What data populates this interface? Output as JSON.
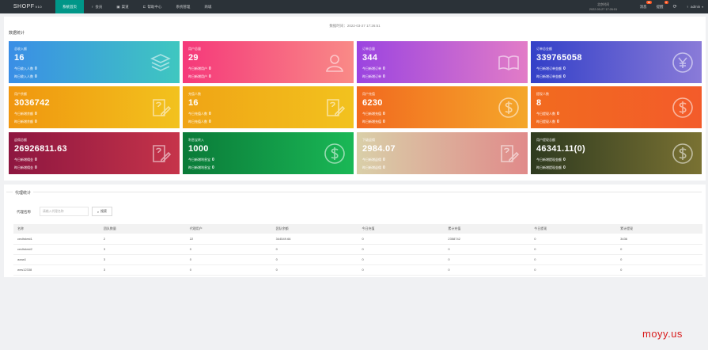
{
  "app": {
    "logo": "SHOPF",
    "version": "V10"
  },
  "nav": [
    {
      "icon": "",
      "label": "系统首页",
      "active": true
    },
    {
      "icon": "♀",
      "label": "会员"
    },
    {
      "icon": "▣",
      "label": "渠道"
    },
    {
      "icon": "⊏",
      "label": "帮助中心"
    },
    {
      "icon": "",
      "label": "系统管理"
    },
    {
      "icon": "",
      "label": "商城"
    }
  ],
  "topright": {
    "clock_line1": "北京时间",
    "clock_line2": "2022-03-27 17:26:51",
    "msg_label": "消息",
    "msg_badge": "99",
    "notice_label": "提醒",
    "notice_badge": "0",
    "refresh_icon": "refresh-icon",
    "user_label": "admin"
  },
  "stats": {
    "title": "数据统计",
    "update_time": "数据时间：2022-03-27 17:26:51",
    "cards": [
      {
        "title": "总收入额",
        "value": "16",
        "l1": "今日收入人数",
        "v1": "0",
        "l2": "昨日收入人数",
        "v2": "0",
        "icon": "layers-icon",
        "bg": "linear-gradient(90deg,#3a8ee6,#3fc7c0)"
      },
      {
        "title": "用户总量",
        "value": "29",
        "l1": "今日新增用户",
        "v1": "0",
        "l2": "昨日新增用户",
        "v2": "0",
        "icon": "user-icon",
        "bg": "linear-gradient(90deg,#f5387a,#f98a87)"
      },
      {
        "title": "订单总量",
        "value": "344",
        "l1": "今日新增订单",
        "v1": "0",
        "l2": "昨日新增订单",
        "v2": "0",
        "icon": "book-icon",
        "bg": "linear-gradient(90deg,#9b44e0,#e27cc7)"
      },
      {
        "title": "订单总金额",
        "value": "339765058",
        "l1": "今日新增订单金额",
        "v1": "0",
        "l2": "昨日新增订单金额",
        "v2": "0",
        "icon": "yen-icon",
        "bg": "linear-gradient(90deg,#3340c8,#8a7bd8)"
      },
      {
        "title": "用户余额",
        "value": "3036742",
        "l1": "今日新增余额",
        "v1": "0",
        "l2": "昨日新增余额",
        "v2": "0",
        "icon": "edit-icon",
        "bg": "linear-gradient(90deg,#f0960f,#f2c21e)"
      },
      {
        "title": "充值人数",
        "value": "16",
        "l1": "今日充值人数",
        "v1": "0",
        "l2": "昨日充值人数",
        "v2": "0",
        "icon": "edit-icon",
        "bg": "linear-gradient(90deg,#f0a415,#f2c21e)"
      },
      {
        "title": "用户充值",
        "value": "6230",
        "l1": "今日新增充值",
        "v1": "0",
        "l2": "昨日新增充值",
        "v2": "0",
        "icon": "dollar-icon",
        "bg": "linear-gradient(90deg,#f2691f,#f4a72a)"
      },
      {
        "title": "提现人数",
        "value": "8",
        "l1": "今日提现人数",
        "v1": "0",
        "l2": "昨日提现人数",
        "v2": "0",
        "icon": "dollar-icon",
        "bg": "linear-gradient(90deg,#f26b1f,#f35b2a)"
      },
      {
        "title": "返佣总额",
        "value": "26926811.63",
        "l1": "今日新增佣金",
        "v1": "0",
        "l2": "昨日新增佣金",
        "v2": "0",
        "icon": "edit-icon",
        "bg": "linear-gradient(90deg,#8d1640,#c6344a)"
      },
      {
        "title": "利息宝转入",
        "value": "1000",
        "l1": "今日新增利息宝",
        "v1": "0",
        "l2": "昨日新增利息宝",
        "v2": "0",
        "icon": "dollar-icon",
        "bg": "linear-gradient(90deg,#0a7a38,#1ab856)"
      },
      {
        "title": "下级返佣",
        "value": "2984.07",
        "l1": "今日新增返佣",
        "v1": "0",
        "l2": "昨日新增返佣",
        "v2": "0",
        "icon": "edit-icon",
        "bg": "linear-gradient(90deg,#d9cfa8,#e08a8a)"
      },
      {
        "title": "用户提现总额",
        "value": "46341.11(0)",
        "l1": "今日新增提现金额",
        "v1": "0",
        "l2": "昨日新增提现金额",
        "v2": "0",
        "icon": "dollar-icon",
        "bg": "linear-gradient(90deg,#2e3a1f,#7a7233)"
      }
    ]
  },
  "channel": {
    "legend": "代理统计",
    "search_label": "代理名称",
    "search_placeholder": "请输入代理名称",
    "search_button": "搜索",
    "columns": [
      "名称",
      "团队数量",
      "代理用户",
      "团队余额",
      "今日充值",
      "累计充值",
      "今日提现",
      "累计提现"
    ],
    "rows": [
      [
        "cecltstest1",
        "2",
        "22",
        "344549.66",
        "0",
        "2358742",
        "0",
        "3436"
      ],
      [
        "cecltstest2",
        "3",
        "0",
        "0",
        "0",
        "0",
        "0",
        "0"
      ],
      [
        "aaaa1",
        "3",
        "0",
        "0",
        "0",
        "0",
        "0",
        "0"
      ],
      [
        "wrw12338",
        "3",
        "0",
        "0",
        "0",
        "0",
        "0",
        "0"
      ]
    ]
  },
  "watermark": "moyy.us"
}
